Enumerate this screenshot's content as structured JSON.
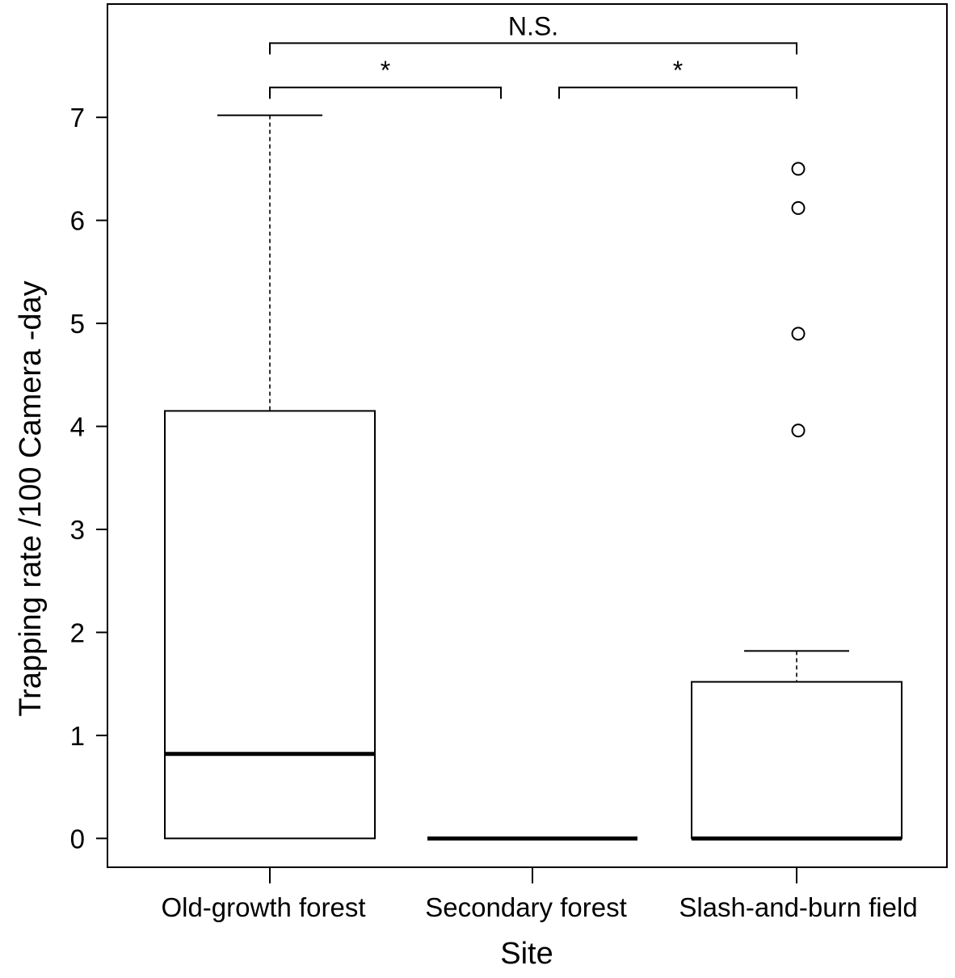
{
  "chart_data": {
    "type": "box",
    "xlabel": "Site",
    "ylabel": "Trapping rate /100 Camera -day",
    "ylim": [
      -0.28,
      8.1
    ],
    "yticks": [
      0,
      1,
      2,
      3,
      4,
      5,
      6,
      7
    ],
    "grid": false,
    "legend": "none",
    "categories": [
      "Old-growth forest",
      "Secondary forest",
      "Slash-and-burn field"
    ],
    "boxes": [
      {
        "category": "Old-growth forest",
        "min": 0,
        "q1": 0,
        "median": 0.82,
        "q3": 4.15,
        "max": 7.02,
        "outliers": []
      },
      {
        "category": "Secondary forest",
        "min": 0,
        "q1": 0,
        "median": 0,
        "q3": 0,
        "max": 0,
        "outliers": []
      },
      {
        "category": "Slash-and-burn field",
        "min": 0,
        "q1": 0,
        "median": 0,
        "q3": 1.52,
        "max": 1.82,
        "outliers": [
          3.96,
          4.9,
          6.12,
          6.5
        ]
      }
    ],
    "significance": [
      {
        "from": "Old-growth forest",
        "to": "Slash-and-burn field",
        "label": "N.S.",
        "level": 7.72
      },
      {
        "from": "Old-growth forest",
        "to": "Secondary forest",
        "label": "*",
        "level": 7.29
      },
      {
        "from": "Secondary forest",
        "to": "Slash-and-burn field",
        "label": "*",
        "level": 7.29
      }
    ],
    "colors": {
      "box_fill": "#ffffff",
      "stroke": "#000000"
    }
  }
}
